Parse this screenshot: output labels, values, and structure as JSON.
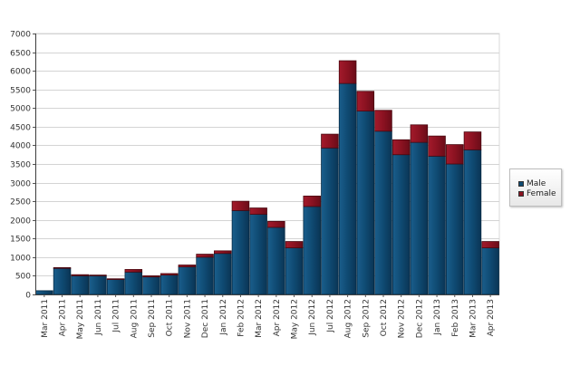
{
  "chart_data": {
    "type": "bar",
    "stacked": true,
    "categories": [
      "Mar 2011",
      "Apr 2011",
      "May 2011",
      "Jun 2011",
      "Jul 2011",
      "Aug 2011",
      "Sep 2011",
      "Oct 2011",
      "Nov 2011",
      "Dec 2011",
      "Jan 2012",
      "Feb 2012",
      "Mar 2012",
      "Apr 2012",
      "May 2012",
      "Jun 2012",
      "Jul 2012",
      "Aug 2012",
      "Sep 2012",
      "Oct 2012",
      "Nov 2012",
      "Dec 2012",
      "Jan 2013",
      "Feb 2013",
      "Mar 2013",
      "Apr 2013"
    ],
    "series": [
      {
        "name": "Male",
        "color": "#0e4a72",
        "values": [
          100,
          700,
          500,
          500,
          400,
          600,
          470,
          520,
          740,
          1000,
          1100,
          2250,
          2150,
          1800,
          1250,
          2360,
          3930,
          5660,
          4920,
          4380,
          3750,
          4080,
          3710,
          3500,
          3880,
          1250
        ]
      },
      {
        "name": "Female",
        "color": "#8b1221",
        "values": [
          0,
          20,
          30,
          20,
          20,
          70,
          30,
          40,
          50,
          80,
          70,
          250,
          170,
          160,
          170,
          280,
          370,
          610,
          530,
          560,
          400,
          470,
          540,
          520,
          480,
          170
        ]
      }
    ],
    "yticks": [
      "0",
      "500",
      "1000",
      "1500",
      "2000",
      "2500",
      "3000",
      "3500",
      "4000",
      "4500",
      "5000",
      "5500",
      "6000",
      "6500",
      "7000"
    ],
    "ylim": [
      0,
      7000
    ],
    "grid": true,
    "legend": "right",
    "title": "",
    "xlabel": "",
    "ylabel": ""
  }
}
